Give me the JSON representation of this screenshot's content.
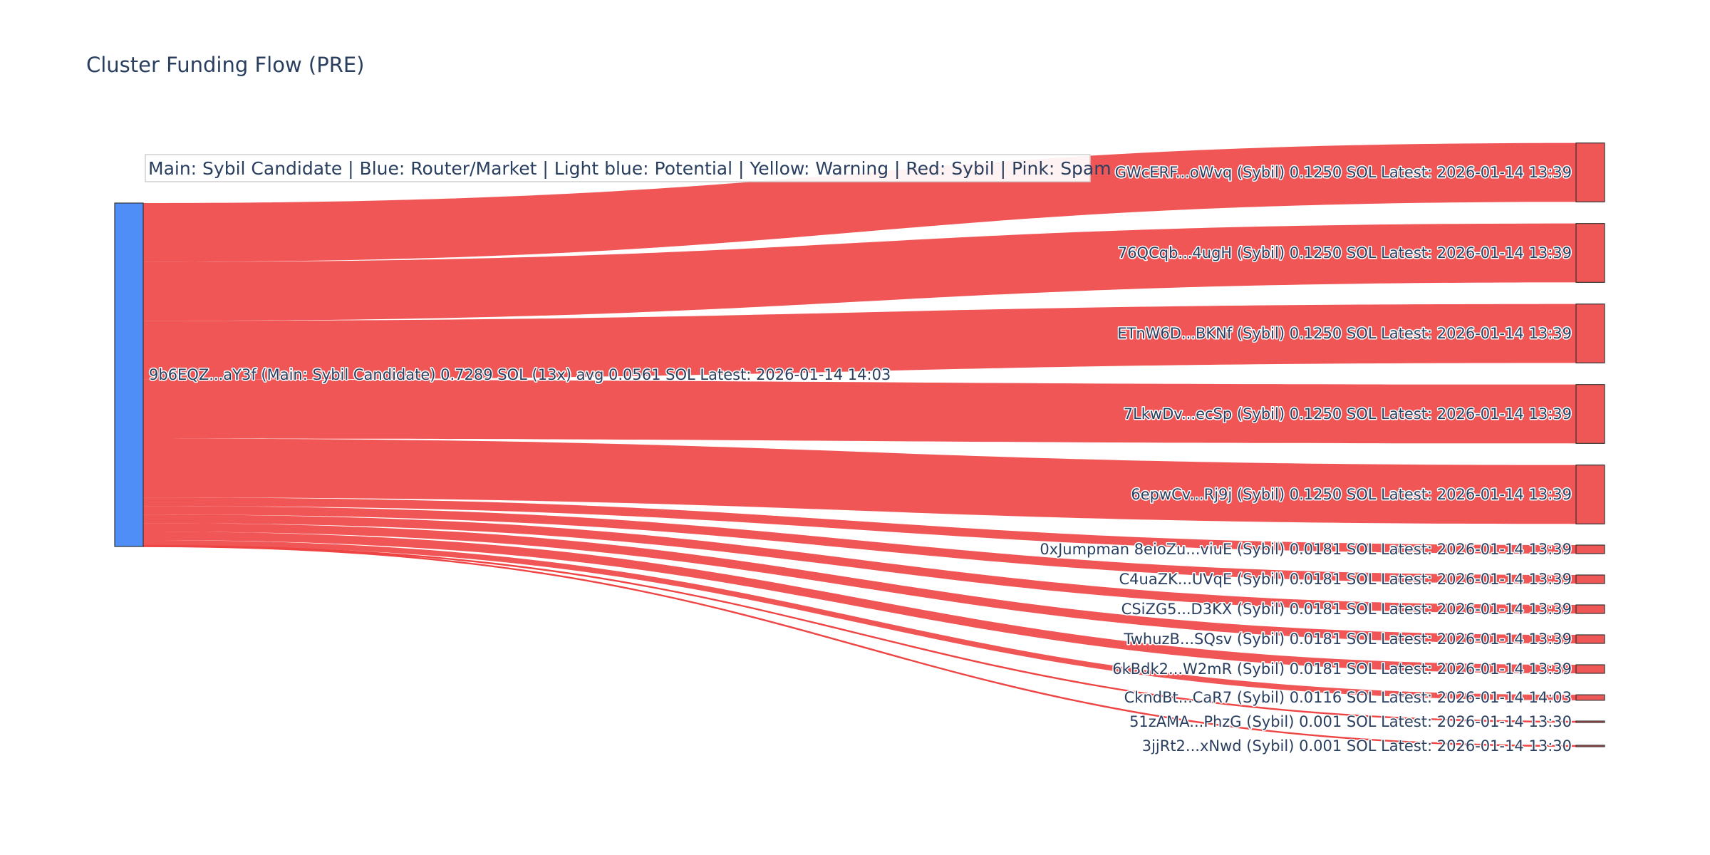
{
  "chart_data": {
    "type": "sankey",
    "title": "Cluster Funding Flow (PRE)",
    "legend_text": "Main: Sybil Candidate  |  Blue: Router/Market | Light blue: Potential | Yellow: Warning | Red: Sybil | Pink: Spam",
    "colors": {
      "source_node": "#4f8ef7",
      "target_node": "#ef5757",
      "link": "#ef4444"
    },
    "source": {
      "label": "9b6EQZ...aY3f (Main: Sybil Candidate) 0.7289 SOL (13x) avg 0.0561 SOL Latest: 2026-01-14 14:03",
      "value": 0.7289
    },
    "targets": [
      {
        "label": "GWcERF...oWvq (Sybil) 0.1250 SOL Latest: 2026-01-14 13:39",
        "value": 0.125
      },
      {
        "label": "76QCqb...4ugH (Sybil) 0.1250 SOL Latest: 2026-01-14 13:39",
        "value": 0.125
      },
      {
        "label": "ETnW6D...BKNf (Sybil) 0.1250 SOL Latest: 2026-01-14 13:39",
        "value": 0.125
      },
      {
        "label": "7LkwDv...ecSp (Sybil) 0.1250 SOL Latest: 2026-01-14 13:39",
        "value": 0.125
      },
      {
        "label": "6epwCv...Rj9j (Sybil) 0.1250 SOL Latest: 2026-01-14 13:39",
        "value": 0.125
      },
      {
        "label": "0xJumpman 8eioZu...viuE (Sybil) 0.0181 SOL Latest: 2026-01-14 13:39",
        "value": 0.0181
      },
      {
        "label": "C4uaZK...UVqE (Sybil) 0.0181 SOL Latest: 2026-01-14 13:39",
        "value": 0.0181
      },
      {
        "label": "CSiZG5...D3KX (Sybil) 0.0181 SOL Latest: 2026-01-14 13:39",
        "value": 0.0181
      },
      {
        "label": "TwhuzB...SQsv (Sybil) 0.0181 SOL Latest: 2026-01-14 13:39",
        "value": 0.0181
      },
      {
        "label": "6kBdk2...W2mR (Sybil) 0.0181 SOL Latest: 2026-01-14 13:39",
        "value": 0.0181
      },
      {
        "label": "CkndBt...CaR7 (Sybil) 0.0116 SOL Latest: 2026-01-14 14:03",
        "value": 0.0116
      },
      {
        "label": "51zAMA...PhzG (Sybil) 0.001 SOL Latest: 2026-01-14 13:30",
        "value": 0.001
      },
      {
        "label": "3jjRt2...xNwd (Sybil) 0.001 SOL Latest: 2026-01-14 13:30",
        "value": 0.001
      }
    ]
  }
}
